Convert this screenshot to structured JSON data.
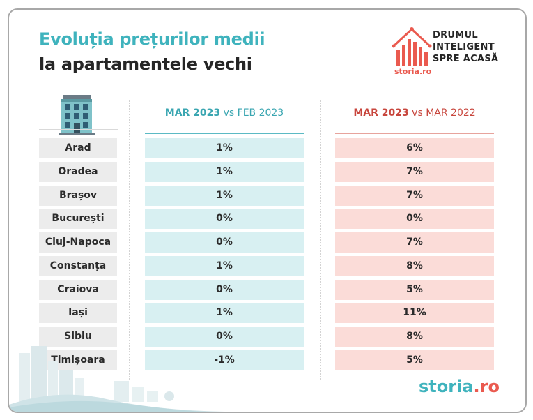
{
  "title": {
    "line1": "Evoluția prețurilor medii",
    "line2": "la apartamentele vechi"
  },
  "brand": {
    "tagline": [
      "DRUMUL",
      "INTELIGENT",
      "SPRE ACASĂ"
    ],
    "logo_word": "storia.ro",
    "footer_logo_main": "storia",
    "footer_logo_suffix": ".ro",
    "colors": {
      "accent_teal": "#3fb3bd",
      "accent_red": "#ea5a4f"
    }
  },
  "columns": {
    "a": {
      "strong": "MAR 2023",
      "light": " vs FEB 2023"
    },
    "b": {
      "strong": "MAR 2023",
      "light": " vs MAR 2022"
    }
  },
  "rows": [
    {
      "city": "Arad",
      "a": "1%",
      "b": "6%"
    },
    {
      "city": "Oradea",
      "a": "1%",
      "b": "7%"
    },
    {
      "city": "Brașov",
      "a": "1%",
      "b": "7%"
    },
    {
      "city": "București",
      "a": "0%",
      "b": "0%"
    },
    {
      "city": "Cluj-Napoca",
      "a": "0%",
      "b": "7%"
    },
    {
      "city": "Constanța",
      "a": "1%",
      "b": "8%"
    },
    {
      "city": "Craiova",
      "a": "0%",
      "b": "5%"
    },
    {
      "city": "Iași",
      "a": "1%",
      "b": "11%"
    },
    {
      "city": "Sibiu",
      "a": "0%",
      "b": "8%"
    },
    {
      "city": "Timișoara",
      "a": "-1%",
      "b": "5%"
    }
  ]
}
